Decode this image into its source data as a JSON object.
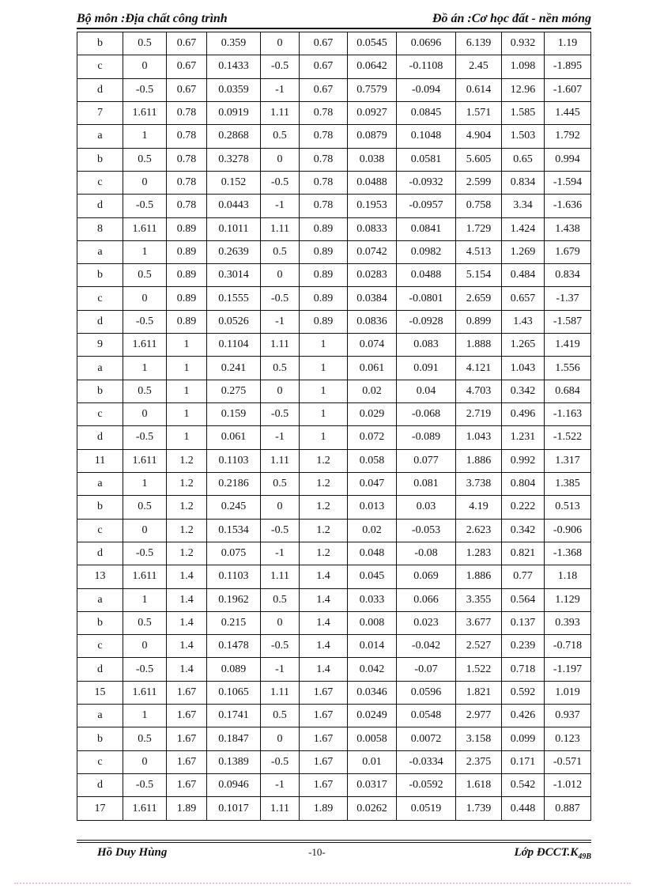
{
  "header": {
    "left": "Bộ môn :Địa chất công trình",
    "right": "Đồ án :Cơ học đất - nền móng"
  },
  "table": {
    "rows": [
      [
        "b",
        "0.5",
        "0.67",
        "0.359",
        "0",
        "0.67",
        "0.0545",
        "0.0696",
        "6.139",
        "0.932",
        "1.19"
      ],
      [
        "c",
        "0",
        "0.67",
        "0.1433",
        "-0.5",
        "0.67",
        "0.0642",
        "-0.1108",
        "2.45",
        "1.098",
        "-1.895"
      ],
      [
        "d",
        "-0.5",
        "0.67",
        "0.0359",
        "-1",
        "0.67",
        "0.7579",
        "-0.094",
        "0.614",
        "12.96",
        "-1.607"
      ],
      [
        "7",
        "1.611",
        "0.78",
        "0.0919",
        "1.11",
        "0.78",
        "0.0927",
        "0.0845",
        "1.571",
        "1.585",
        "1.445"
      ],
      [
        "a",
        "1",
        "0.78",
        "0.2868",
        "0.5",
        "0.78",
        "0.0879",
        "0.1048",
        "4.904",
        "1.503",
        "1.792"
      ],
      [
        "b",
        "0.5",
        "0.78",
        "0.3278",
        "0",
        "0.78",
        "0.038",
        "0.0581",
        "5.605",
        "0.65",
        "0.994"
      ],
      [
        "c",
        "0",
        "0.78",
        "0.152",
        "-0.5",
        "0.78",
        "0.0488",
        "-0.0932",
        "2.599",
        "0.834",
        "-1.594"
      ],
      [
        "d",
        "-0.5",
        "0.78",
        "0.0443",
        "-1",
        "0.78",
        "0.1953",
        "-0.0957",
        "0.758",
        "3.34",
        "-1.636"
      ],
      [
        "8",
        "1.611",
        "0.89",
        "0.1011",
        "1.11",
        "0.89",
        "0.0833",
        "0.0841",
        "1.729",
        "1.424",
        "1.438"
      ],
      [
        "a",
        "1",
        "0.89",
        "0.2639",
        "0.5",
        "0.89",
        "0.0742",
        "0.0982",
        "4.513",
        "1.269",
        "1.679"
      ],
      [
        "b",
        "0.5",
        "0.89",
        "0.3014",
        "0",
        "0.89",
        "0.0283",
        "0.0488",
        "5.154",
        "0.484",
        "0.834"
      ],
      [
        "c",
        "0",
        "0.89",
        "0.1555",
        "-0.5",
        "0.89",
        "0.0384",
        "-0.0801",
        "2.659",
        "0.657",
        "-1.37"
      ],
      [
        "d",
        "-0.5",
        "0.89",
        "0.0526",
        "-1",
        "0.89",
        "0.0836",
        "-0.0928",
        "0.899",
        "1.43",
        "-1.587"
      ],
      [
        "9",
        "1.611",
        "1",
        "0.1104",
        "1.11",
        "1",
        "0.074",
        "0.083",
        "1.888",
        "1.265",
        "1.419"
      ],
      [
        "a",
        "1",
        "1",
        "0.241",
        "0.5",
        "1",
        "0.061",
        "0.091",
        "4.121",
        "1.043",
        "1.556"
      ],
      [
        "b",
        "0.5",
        "1",
        "0.275",
        "0",
        "1",
        "0.02",
        "0.04",
        "4.703",
        "0.342",
        "0.684"
      ],
      [
        "c",
        "0",
        "1",
        "0.159",
        "-0.5",
        "1",
        "0.029",
        "-0.068",
        "2.719",
        "0.496",
        "-1.163"
      ],
      [
        "d",
        "-0.5",
        "1",
        "0.061",
        "-1",
        "1",
        "0.072",
        "-0.089",
        "1.043",
        "1.231",
        "-1.522"
      ],
      [
        "11",
        "1.611",
        "1.2",
        "0.1103",
        "1.11",
        "1.2",
        "0.058",
        "0.077",
        "1.886",
        "0.992",
        "1.317"
      ],
      [
        "a",
        "1",
        "1.2",
        "0.2186",
        "0.5",
        "1.2",
        "0.047",
        "0.081",
        "3.738",
        "0.804",
        "1.385"
      ],
      [
        "b",
        "0.5",
        "1.2",
        "0.245",
        "0",
        "1.2",
        "0.013",
        "0.03",
        "4.19",
        "0.222",
        "0.513"
      ],
      [
        "c",
        "0",
        "1.2",
        "0.1534",
        "-0.5",
        "1.2",
        "0.02",
        "-0.053",
        "2.623",
        "0.342",
        "-0.906"
      ],
      [
        "d",
        "-0.5",
        "1.2",
        "0.075",
        "-1",
        "1.2",
        "0.048",
        "-0.08",
        "1.283",
        "0.821",
        "-1.368"
      ],
      [
        "13",
        "1.611",
        "1.4",
        "0.1103",
        "1.11",
        "1.4",
        "0.045",
        "0.069",
        "1.886",
        "0.77",
        "1.18"
      ],
      [
        "a",
        "1",
        "1.4",
        "0.1962",
        "0.5",
        "1.4",
        "0.033",
        "0.066",
        "3.355",
        "0.564",
        "1.129"
      ],
      [
        "b",
        "0.5",
        "1.4",
        "0.215",
        "0",
        "1.4",
        "0.008",
        "0.023",
        "3.677",
        "0.137",
        "0.393"
      ],
      [
        "c",
        "0",
        "1.4",
        "0.1478",
        "-0.5",
        "1.4",
        "0.014",
        "-0.042",
        "2.527",
        "0.239",
        "-0.718"
      ],
      [
        "d",
        "-0.5",
        "1.4",
        "0.089",
        "-1",
        "1.4",
        "0.042",
        "-0.07",
        "1.522",
        "0.718",
        "-1.197"
      ],
      [
        "15",
        "1.611",
        "1.67",
        "0.1065",
        "1.11",
        "1.67",
        "0.0346",
        "0.0596",
        "1.821",
        "0.592",
        "1.019"
      ],
      [
        "a",
        "1",
        "1.67",
        "0.1741",
        "0.5",
        "1.67",
        "0.0249",
        "0.0548",
        "2.977",
        "0.426",
        "0.937"
      ],
      [
        "b",
        "0.5",
        "1.67",
        "0.1847",
        "0",
        "1.67",
        "0.0058",
        "0.0072",
        "3.158",
        "0.099",
        "0.123"
      ],
      [
        "c",
        "0",
        "1.67",
        "0.1389",
        "-0.5",
        "1.67",
        "0.01",
        "-0.0334",
        "2.375",
        "0.171",
        "-0.571"
      ],
      [
        "d",
        "-0.5",
        "1.67",
        "0.0946",
        "-1",
        "1.67",
        "0.0317",
        "-0.0592",
        "1.618",
        "0.542",
        "-1.012"
      ],
      [
        "17",
        "1.611",
        "1.89",
        "0.1017",
        "1.11",
        "1.89",
        "0.0262",
        "0.0519",
        "1.739",
        "0.448",
        "0.887"
      ]
    ]
  },
  "footer": {
    "author": "Hồ Duy Hùng",
    "page_number": "-10-",
    "class_main": "Lớp ĐCCT.K",
    "class_sub": "49B"
  },
  "colors": {
    "text": "#111111",
    "border": "#111111",
    "bottom_dotted_line": "#f2c2e6"
  }
}
